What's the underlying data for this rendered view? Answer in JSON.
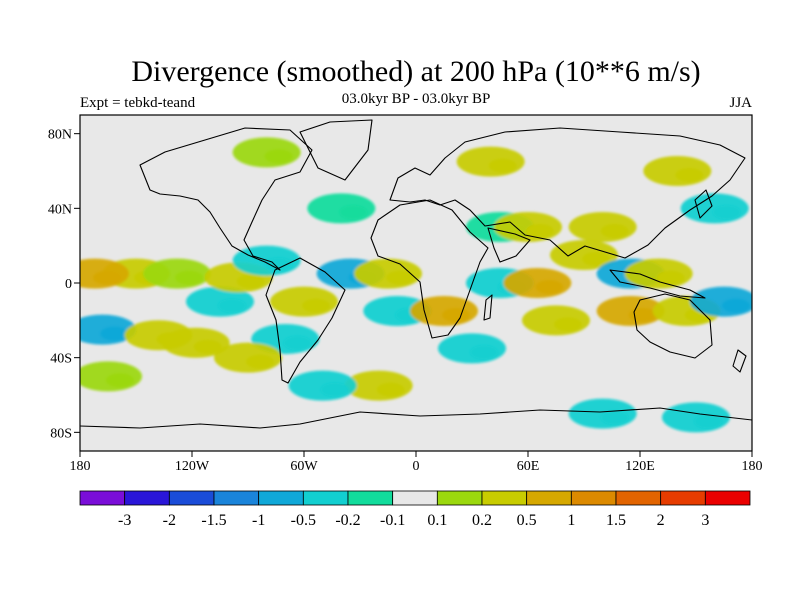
{
  "chart_data": {
    "type": "heatmap",
    "title": "Divergence (smoothed) at 200 hPa (10**6 m/s)",
    "left_string": "Expt = tebkd-teand",
    "center_string": "03.0kyr BP - 03.0kyr BP",
    "right_string": "JJA",
    "xlabel": "",
    "ylabel": "",
    "xlim": [
      -180,
      180
    ],
    "ylim": [
      -90,
      90
    ],
    "x_ticks": [
      {
        "value": -180,
        "label": "180"
      },
      {
        "value": -120,
        "label": "120W"
      },
      {
        "value": -60,
        "label": "60W"
      },
      {
        "value": 0,
        "label": "0"
      },
      {
        "value": 60,
        "label": "60E"
      },
      {
        "value": 120,
        "label": "120E"
      },
      {
        "value": 180,
        "label": "180"
      }
    ],
    "y_ticks": [
      {
        "value": 80,
        "label": "80N"
      },
      {
        "value": 40,
        "label": "40N"
      },
      {
        "value": 0,
        "label": "0"
      },
      {
        "value": -40,
        "label": "40S"
      },
      {
        "value": -80,
        "label": "80S"
      }
    ],
    "colorbar": {
      "colors": [
        "#7a0ed8",
        "#2a16d8",
        "#1a4cd8",
        "#1a84da",
        "#10a8d8",
        "#12cfd0",
        "#12dc9c",
        "#e8e8e8",
        "#9bd80e",
        "#c8cc00",
        "#d6a800",
        "#dc8a00",
        "#e26400",
        "#e63c00",
        "#ea0000"
      ],
      "levels": [
        "-3",
        "-2",
        "-1.5",
        "-1",
        "-0.5",
        "-0.2",
        "-0.1",
        "0.1",
        "0.2",
        "0.5",
        "1",
        "1.5",
        "2",
        "3"
      ]
    },
    "anomalies": [
      {
        "lon": -168,
        "lat": -25,
        "bin": 4
      },
      {
        "lon": -138,
        "lat": -28,
        "bin": 9
      },
      {
        "lon": -118,
        "lat": -32,
        "bin": 9
      },
      {
        "lon": -150,
        "lat": 5,
        "bin": 9
      },
      {
        "lon": -172,
        "lat": 5,
        "bin": 10
      },
      {
        "lon": -128,
        "lat": 5,
        "bin": 8
      },
      {
        "lon": -105,
        "lat": -10,
        "bin": 5
      },
      {
        "lon": -95,
        "lat": 3,
        "bin": 9
      },
      {
        "lon": -80,
        "lat": 12,
        "bin": 5
      },
      {
        "lon": -70,
        "lat": -30,
        "bin": 5
      },
      {
        "lon": -90,
        "lat": -40,
        "bin": 9
      },
      {
        "lon": -60,
        "lat": -10,
        "bin": 9
      },
      {
        "lon": -35,
        "lat": 5,
        "bin": 4
      },
      {
        "lon": -15,
        "lat": 5,
        "bin": 9
      },
      {
        "lon": -40,
        "lat": 40,
        "bin": 6
      },
      {
        "lon": -10,
        "lat": -15,
        "bin": 5
      },
      {
        "lon": 15,
        "lat": -15,
        "bin": 10
      },
      {
        "lon": 30,
        "lat": -35,
        "bin": 5
      },
      {
        "lon": 45,
        "lat": 30,
        "bin": 6
      },
      {
        "lon": 60,
        "lat": 30,
        "bin": 9
      },
      {
        "lon": 45,
        "lat": 0,
        "bin": 5
      },
      {
        "lon": 65,
        "lat": 0,
        "bin": 10
      },
      {
        "lon": 75,
        "lat": -20,
        "bin": 9
      },
      {
        "lon": 90,
        "lat": 15,
        "bin": 9
      },
      {
        "lon": 100,
        "lat": 30,
        "bin": 9
      },
      {
        "lon": 115,
        "lat": 5,
        "bin": 4
      },
      {
        "lon": 130,
        "lat": 5,
        "bin": 9
      },
      {
        "lon": 115,
        "lat": -15,
        "bin": 10
      },
      {
        "lon": 145,
        "lat": -15,
        "bin": 9
      },
      {
        "lon": 160,
        "lat": 40,
        "bin": 5
      },
      {
        "lon": 165,
        "lat": -10,
        "bin": 4
      },
      {
        "lon": 100,
        "lat": -70,
        "bin": 5
      },
      {
        "lon": 150,
        "lat": -72,
        "bin": 5
      },
      {
        "lon": -80,
        "lat": 70,
        "bin": 8
      },
      {
        "lon": 40,
        "lat": 65,
        "bin": 9
      },
      {
        "lon": 140,
        "lat": 60,
        "bin": 9
      },
      {
        "lon": -165,
        "lat": -50,
        "bin": 8
      },
      {
        "lon": -20,
        "lat": -55,
        "bin": 9
      },
      {
        "lon": -50,
        "lat": -55,
        "bin": 5
      }
    ]
  }
}
